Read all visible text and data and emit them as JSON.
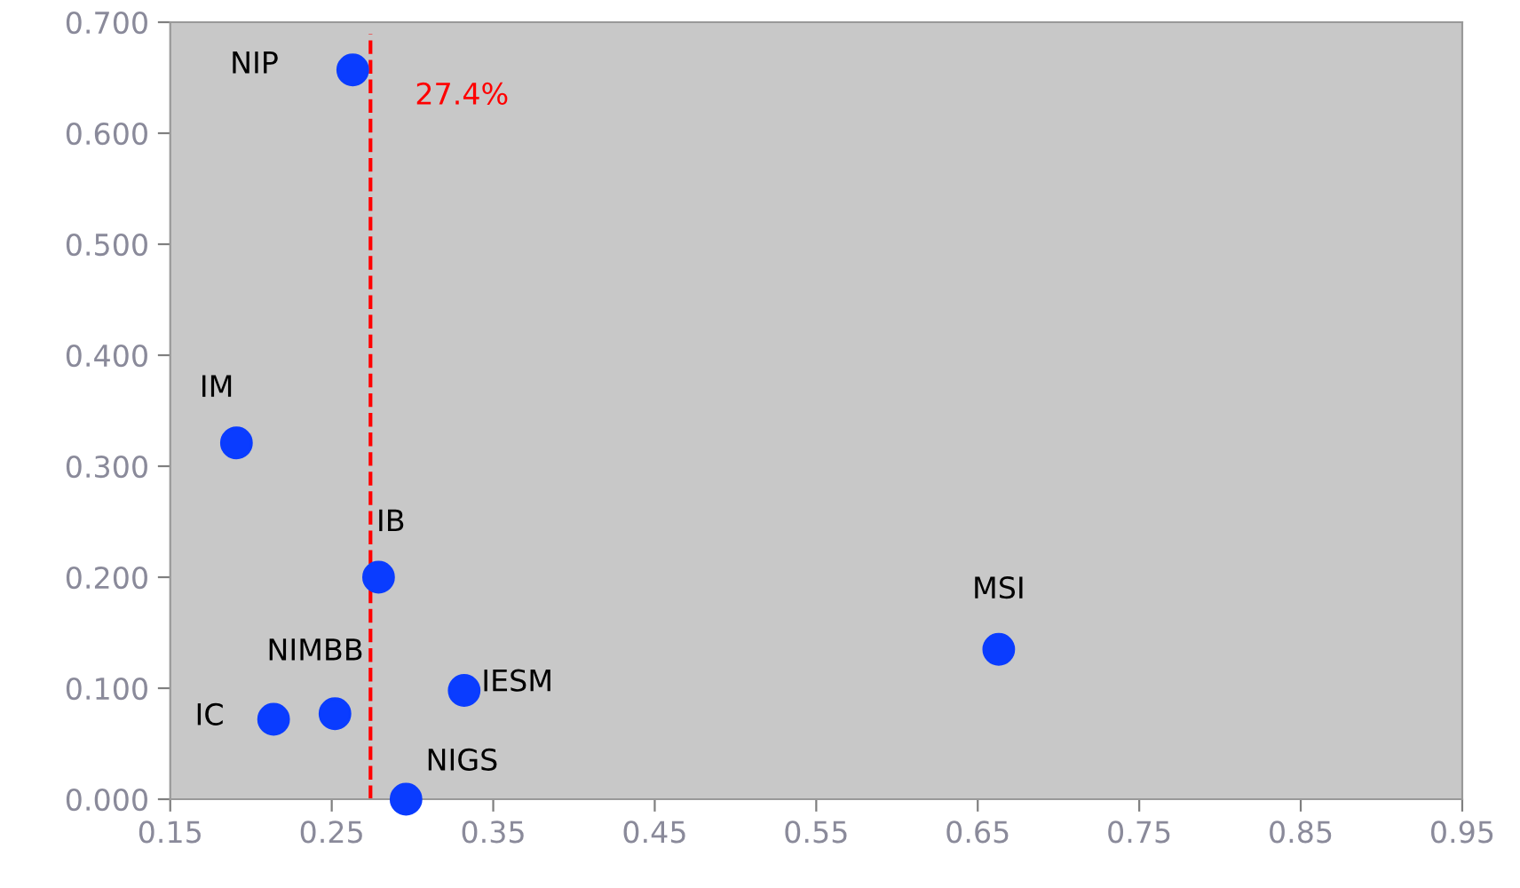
{
  "chart_data": {
    "type": "scatter",
    "marker": "circle",
    "grid": false,
    "legend": false,
    "x": [
      0.263,
      0.191,
      0.279,
      0.663,
      0.332,
      0.252,
      0.214,
      0.296
    ],
    "series": [
      {
        "color": "#0a3cff",
        "values": [
          0.657,
          0.321,
          0.2,
          0.135,
          0.098,
          0.077,
          0.072,
          0.0
        ]
      }
    ],
    "xlim": [
      0.15,
      0.95
    ],
    "xticks": [
      {
        "value": 0.15,
        "label": "0.15"
      },
      {
        "value": 0.25,
        "label": "0.25"
      },
      {
        "value": 0.35,
        "label": "0.35"
      },
      {
        "value": 0.45,
        "label": "0.45"
      },
      {
        "value": 0.55,
        "label": "0.55"
      },
      {
        "value": 0.65,
        "label": "0.65"
      },
      {
        "value": 0.75,
        "label": "0.75"
      },
      {
        "value": 0.85,
        "label": "0.85"
      },
      {
        "value": 0.95,
        "label": "0.95"
      }
    ],
    "ylim": [
      0,
      0.7
    ],
    "yticks": [
      {
        "value": 0,
        "label": "0.000"
      },
      {
        "value": 0.1,
        "label": "0.100"
      },
      {
        "value": 0.2,
        "label": "0.200"
      },
      {
        "value": 0.3,
        "label": "0.300"
      },
      {
        "value": 0.4,
        "label": "0.400"
      },
      {
        "value": 0.5,
        "label": "0.500"
      },
      {
        "value": 0.6,
        "label": "0.600"
      },
      {
        "value": 0.7,
        "label": "0.700"
      }
    ],
    "ref_lines": [
      {
        "axis": "x",
        "value": 0.274,
        "label": "27.4%",
        "color": "#ff0000",
        "line_style": "dashed"
      }
    ],
    "annotations": [
      {
        "text": "NIP",
        "x": 0.263,
        "y": 0.657
      },
      {
        "text": "IM",
        "x": 0.191,
        "y": 0.321
      },
      {
        "text": "IB",
        "x": 0.279,
        "y": 0.2
      },
      {
        "text": "MSI",
        "x": 0.663,
        "y": 0.135
      },
      {
        "text": "IESM",
        "x": 0.332,
        "y": 0.098
      },
      {
        "text": "NIMBB",
        "x": 0.252,
        "y": 0.077
      },
      {
        "text": "IC",
        "x": 0.214,
        "y": 0.072
      },
      {
        "text": "NIGS",
        "x": 0.296,
        "y": 0.0
      }
    ]
  }
}
